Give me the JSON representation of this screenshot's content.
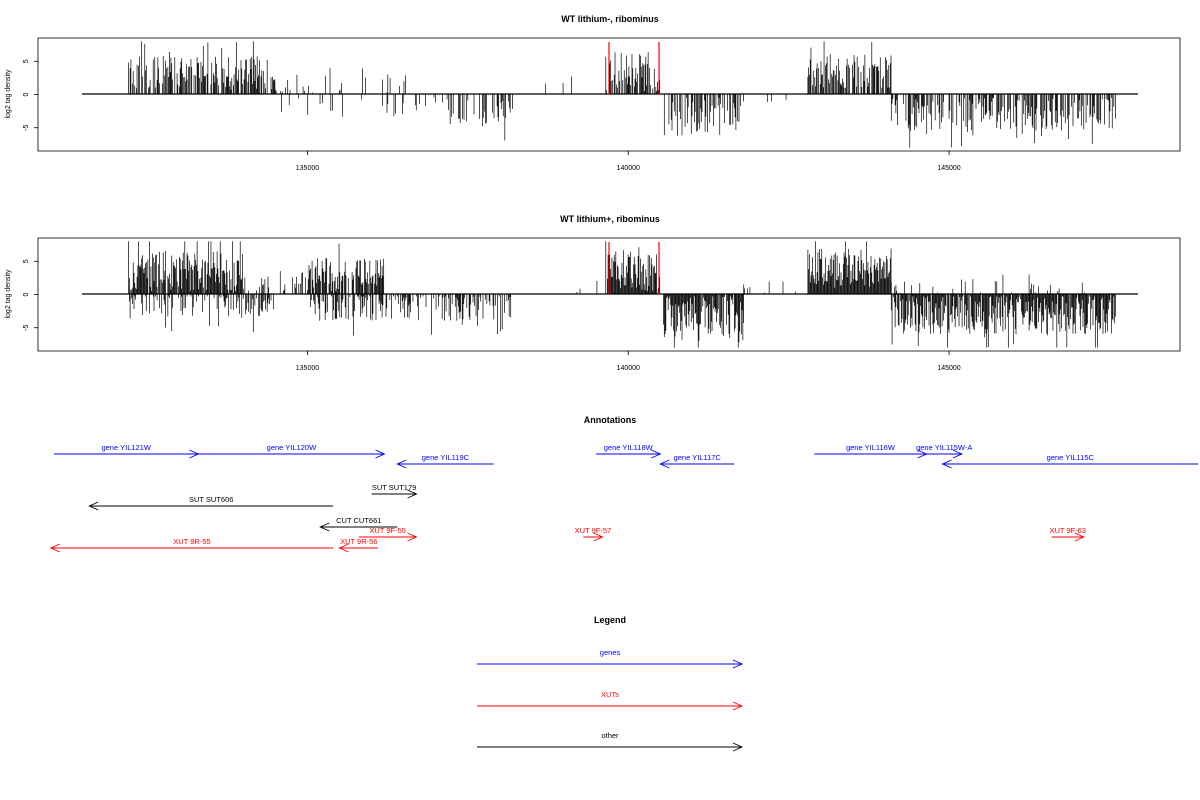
{
  "chart_data": [
    {
      "type": "bar",
      "title": "WT lithium-, ribominus",
      "ylabel": "log2 tag density",
      "xlim": [
        130800,
        148600
      ],
      "ylim": [
        -8.5,
        8.5
      ],
      "xticks": [
        135000,
        140000,
        145000
      ],
      "yticks": [
        -5,
        0,
        5
      ],
      "ytick_labels": [
        "-5",
        "0",
        "5"
      ],
      "xtick_labels": [
        "135000",
        "140000",
        "145000"
      ],
      "highlight_x": [
        139700,
        140480
      ],
      "colors": {
        "bars": "#000000",
        "highlight": "#ff0000",
        "frame": "#000000"
      },
      "segments": [
        {
          "start": 132200,
          "end": 134500,
          "side": "plus",
          "mean": 3.2,
          "spread": 2.5,
          "density": 0.7
        },
        {
          "start": 134500,
          "end": 136800,
          "side": "plus",
          "mean": 1.5,
          "spread": 1.5,
          "density": 0.12
        },
        {
          "start": 134500,
          "end": 137200,
          "side": "minus",
          "mean": 1.8,
          "spread": 1.5,
          "density": 0.12
        },
        {
          "start": 137200,
          "end": 138200,
          "side": "minus",
          "mean": 2.8,
          "spread": 2.0,
          "density": 0.4
        },
        {
          "start": 138300,
          "end": 139600,
          "side": "plus",
          "mean": 1.0,
          "spread": 0.8,
          "density": 0.03
        },
        {
          "start": 139650,
          "end": 140500,
          "side": "plus",
          "mean": 3.5,
          "spread": 3.0,
          "density": 0.8
        },
        {
          "start": 140550,
          "end": 141800,
          "side": "minus",
          "mean": 3.2,
          "spread": 3.0,
          "density": 0.55
        },
        {
          "start": 141800,
          "end": 142800,
          "side": "minus",
          "mean": 1.0,
          "spread": 0.8,
          "density": 0.04
        },
        {
          "start": 142800,
          "end": 144100,
          "side": "plus",
          "mean": 3.5,
          "spread": 2.5,
          "density": 0.75
        },
        {
          "start": 144100,
          "end": 147600,
          "side": "minus",
          "mean": 3.0,
          "spread": 2.5,
          "density": 0.55
        }
      ]
    },
    {
      "type": "bar",
      "title": "WT lithium+, ribominus",
      "ylabel": "log2 tag density",
      "xlim": [
        130800,
        148600
      ],
      "ylim": [
        -8.5,
        8.5
      ],
      "xticks": [
        135000,
        140000,
        145000
      ],
      "yticks": [
        -5,
        0,
        5
      ],
      "ytick_labels": [
        "-5",
        "0",
        "5"
      ],
      "xtick_labels": [
        "135000",
        "140000",
        "145000"
      ],
      "highlight_x": [
        139700,
        140480
      ],
      "colors": {
        "bars": "#000000",
        "highlight": "#ff0000",
        "frame": "#000000"
      },
      "segments": [
        {
          "start": 132200,
          "end": 134000,
          "side": "plus",
          "mean": 3.5,
          "spread": 3.0,
          "density": 0.95
        },
        {
          "start": 132200,
          "end": 134500,
          "side": "minus",
          "mean": 1.5,
          "spread": 2.0,
          "density": 0.45
        },
        {
          "start": 134000,
          "end": 135000,
          "side": "plus",
          "mean": 1.5,
          "spread": 1.2,
          "density": 0.15
        },
        {
          "start": 135000,
          "end": 136200,
          "side": "plus",
          "mean": 3.0,
          "spread": 2.5,
          "density": 0.85
        },
        {
          "start": 135000,
          "end": 138200,
          "side": "minus",
          "mean": 2.0,
          "spread": 2.0,
          "density": 0.5
        },
        {
          "start": 138300,
          "end": 139600,
          "side": "plus",
          "mean": 1.0,
          "spread": 0.8,
          "density": 0.05
        },
        {
          "start": 139650,
          "end": 140500,
          "side": "plus",
          "mean": 3.5,
          "spread": 3.0,
          "density": 0.95
        },
        {
          "start": 140550,
          "end": 141800,
          "side": "minus",
          "mean": 3.5,
          "spread": 3.5,
          "density": 0.95
        },
        {
          "start": 141800,
          "end": 142800,
          "side": "plus",
          "mean": 1.0,
          "spread": 1.0,
          "density": 0.06
        },
        {
          "start": 142800,
          "end": 144100,
          "side": "plus",
          "mean": 4.0,
          "spread": 3.0,
          "density": 1.0
        },
        {
          "start": 144100,
          "end": 147600,
          "side": "minus",
          "mean": 3.0,
          "spread": 3.0,
          "density": 0.95
        },
        {
          "start": 144100,
          "end": 147600,
          "side": "plus",
          "mean": 1.0,
          "spread": 1.0,
          "density": 0.08
        }
      ]
    }
  ],
  "annotations": {
    "title": "Annotations",
    "items": [
      {
        "label": "gene YIL121W",
        "start": 131050,
        "end": 133300,
        "dir": "right",
        "color": "#0000ff",
        "row": 0
      },
      {
        "label": "gene YIL120W",
        "start": 133300,
        "end": 136200,
        "dir": "right",
        "color": "#0000ff",
        "row": 0
      },
      {
        "label": "gene YIL119C",
        "start": 136400,
        "end": 137900,
        "dir": "left",
        "color": "#0000ff",
        "row": 1
      },
      {
        "label": "gene YIL118W",
        "start": 139500,
        "end": 140500,
        "dir": "right",
        "color": "#0000ff",
        "row": 0
      },
      {
        "label": "gene YIL117C",
        "start": 140500,
        "end": 141650,
        "dir": "left",
        "color": "#0000ff",
        "row": 1
      },
      {
        "label": "gene YIL116W",
        "start": 142900,
        "end": 144650,
        "dir": "right",
        "color": "#0000ff",
        "row": 0
      },
      {
        "label": "gene YIL115W-A",
        "start": 144650,
        "end": 145200,
        "dir": "right",
        "color": "#0000ff",
        "row": 0
      },
      {
        "label": "gene YIL115C",
        "start": 144900,
        "end": 148900,
        "dir": "left",
        "color": "#0000ff",
        "row": 1
      },
      {
        "label": "SUT SUT179",
        "start": 136000,
        "end": 136700,
        "dir": "right",
        "color": "#000000",
        "row": 3
      },
      {
        "label": "SUT SUT606",
        "start": 131600,
        "end": 135400,
        "dir": "left",
        "color": "#000000",
        "row": 4
      },
      {
        "label": "CUT CUT661",
        "start": 135200,
        "end": 136400,
        "dir": "left",
        "color": "#000000",
        "row": 5
      },
      {
        "label": "XUT 9F-55",
        "start": 135800,
        "end": 136700,
        "dir": "right",
        "color": "#ff0000",
        "row": 6
      },
      {
        "label": "XUT 9F-57",
        "start": 139300,
        "end": 139600,
        "dir": "right",
        "color": "#ff0000",
        "row": 6
      },
      {
        "label": "XUT 9F-63",
        "start": 146600,
        "end": 147100,
        "dir": "right",
        "color": "#ff0000",
        "row": 6
      },
      {
        "label": "XUT 9R-55",
        "start": 131000,
        "end": 135400,
        "dir": "left",
        "color": "#ff0000",
        "row": 7
      },
      {
        "label": "XUT 9R-56",
        "start": 135500,
        "end": 136100,
        "dir": "left",
        "color": "#ff0000",
        "row": 7
      }
    ]
  },
  "legend": {
    "title": "Legend",
    "items": [
      {
        "label": "genes",
        "color": "#0000ff"
      },
      {
        "label": "XUTs",
        "color": "#ff0000"
      },
      {
        "label": "other",
        "color": "#000000"
      }
    ]
  }
}
